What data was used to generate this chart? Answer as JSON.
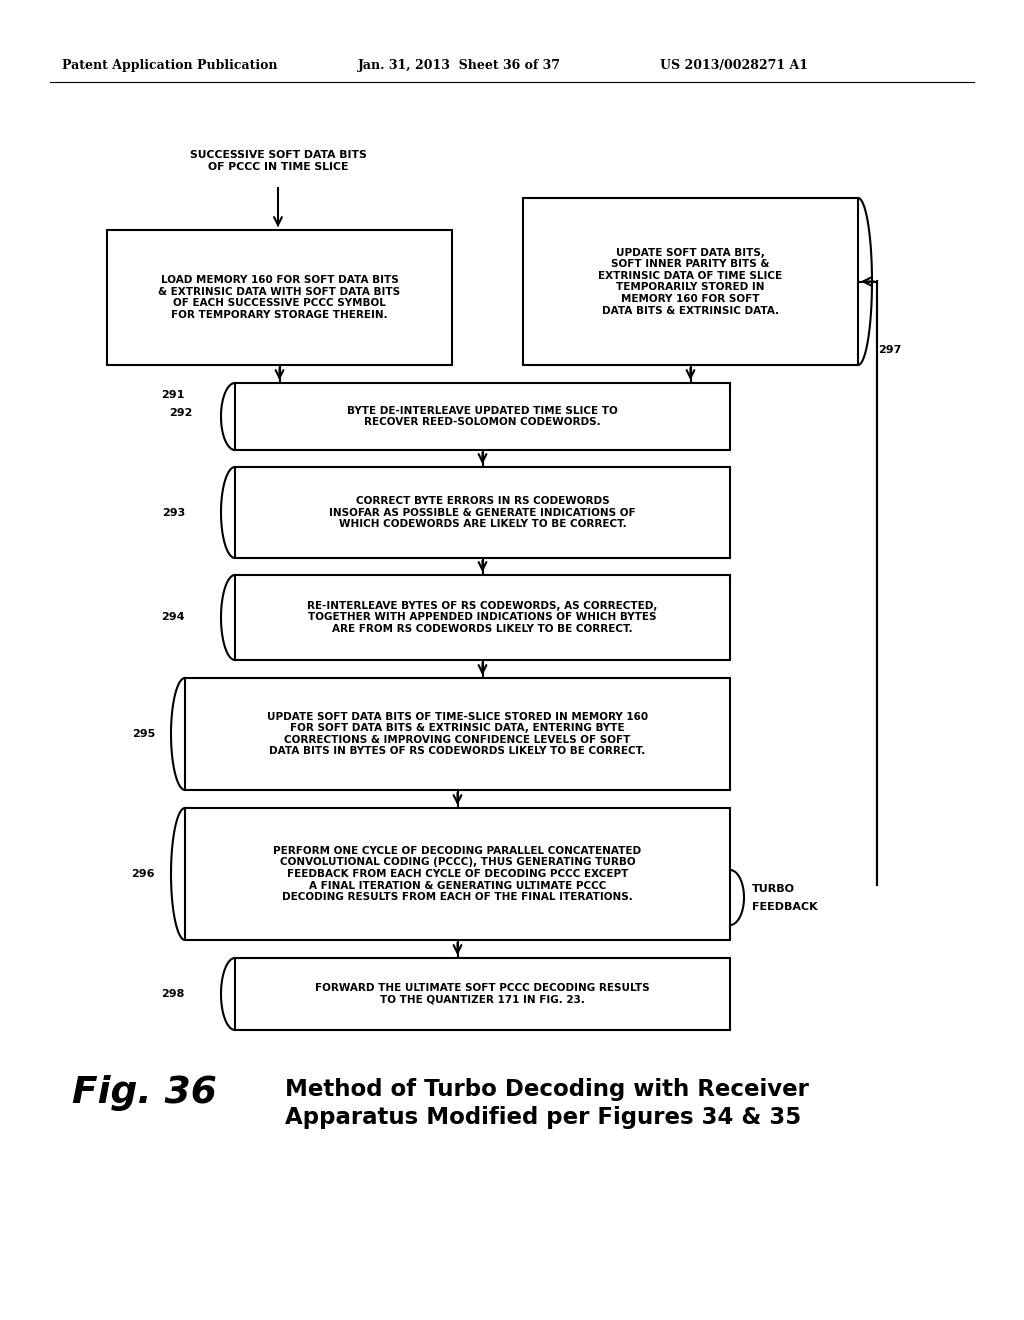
{
  "bg_color": "#ffffff",
  "header_left": "Patent Application Publication",
  "header_mid": "Jan. 31, 2013  Sheet 36 of 37",
  "header_right": "US 2013/0028271 A1",
  "top_label": "SUCCESSIVE SOFT DATA BITS\nOF PCCC IN TIME SLICE",
  "box_left_text": "LOAD MEMORY 160 FOR SOFT DATA BITS\n& EXTRINSIC DATA WITH SOFT DATA BITS\nOF EACH SUCCESSIVE PCCC SYMBOL\nFOR TEMPORARY STORAGE THEREIN.",
  "box_right_text": "UPDATE SOFT DATA BITS,\nSOFT INNER PARITY BITS &\nEXTRINSIC DATA OF TIME SLICE\nTEMPORARILY STORED IN\nMEMORY 160 FOR SOFT\nDATA BITS & EXTRINSIC DATA.",
  "label_297": "297",
  "box292_text": "BYTE DE-INTERLEAVE UPDATED TIME SLICE TO\nRECOVER REED-SOLOMON CODEWORDS.",
  "label_291": "291",
  "label_292": "292",
  "box293_text": "CORRECT BYTE ERRORS IN RS CODEWORDS\nINSOFAR AS POSSIBLE & GENERATE INDICATIONS OF\nWHICH CODEWORDS ARE LIKELY TO BE CORRECT.",
  "label_293": "293",
  "box294_text": "RE-INTERLEAVE BYTES OF RS CODEWORDS, AS CORRECTED,\nTOGETHER WITH APPENDED INDICATIONS OF WHICH BYTES\nARE FROM RS CODEWORDS LIKELY TO BE CORRECT.",
  "label_294": "294",
  "box295_text": "UPDATE SOFT DATA BITS OF TIME-SLICE STORED IN MEMORY 160\nFOR SOFT DATA BITS & EXTRINSIC DATA, ENTERING BYTE\nCORRECTIONS & IMPROVING CONFIDENCE LEVELS OF SOFT\nDATA BITS IN BYTES OF RS CODEWORDS LIKELY TO BE CORRECT.",
  "label_295": "295",
  "box296_text": "PERFORM ONE CYCLE OF DECODING PARALLEL CONCATENATED\nCONVOLUTIONAL CODING (PCCC), THUS GENERATING TURBO\nFEEDBACK FROM EACH CYCLE OF DECODING PCCC EXCEPT\nA FINAL ITERATION & GENERATING ULTIMATE PCCC\nDECODING RESULTS FROM EACH OF THE FINAL ITERATIONS.",
  "label_296": "296",
  "turbo_label_1": "TURBO",
  "turbo_label_2": "FEEDBACK",
  "box298_text": "FORWARD THE ULTIMATE SOFT PCCC DECODING RESULTS\nTO THE QUANTIZER 171 IN FIG. 23.",
  "label_298": "298",
  "fig_label": "Fig. 36",
  "fig_caption_line1": "Method of Turbo Decoding with Receiver",
  "fig_caption_line2": "Apparatus Modified per Figures 34 & 35"
}
